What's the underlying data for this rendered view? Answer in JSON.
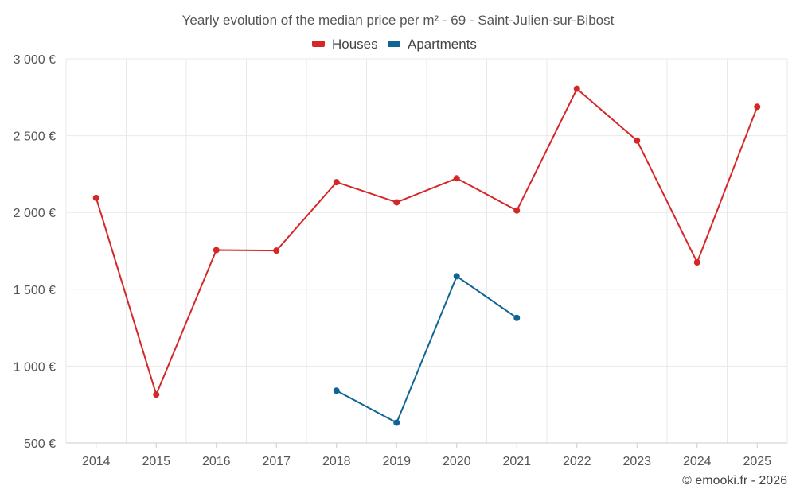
{
  "chart_data": {
    "type": "line",
    "title": "Yearly evolution of the median price per m² - 69 - Saint-Julien-sur-Bibost",
    "categories": [
      "2014",
      "2015",
      "2016",
      "2017",
      "2018",
      "2019",
      "2020",
      "2021",
      "2022",
      "2023",
      "2024",
      "2025"
    ],
    "ylim": [
      500,
      3000
    ],
    "yticks": [
      500,
      1000,
      1500,
      2000,
      2500,
      3000
    ],
    "ytick_labels": [
      "500 €",
      "1 000 €",
      "1 500 €",
      "2 000 €",
      "2 500 €",
      "3 000 €"
    ],
    "grid": true,
    "legend_position": "top-center",
    "series": [
      {
        "name": "Houses",
        "color": "#d62728",
        "values": [
          2095,
          815,
          1755,
          1752,
          2197,
          2066,
          2222,
          2013,
          2805,
          2468,
          1675,
          2688
        ]
      },
      {
        "name": "Apartments",
        "color": "#0e6494",
        "values": [
          null,
          null,
          null,
          null,
          840,
          632,
          1585,
          1314,
          null,
          null,
          null,
          null
        ]
      }
    ]
  },
  "footer": {
    "credit": "© emooki.fr - 2026"
  }
}
